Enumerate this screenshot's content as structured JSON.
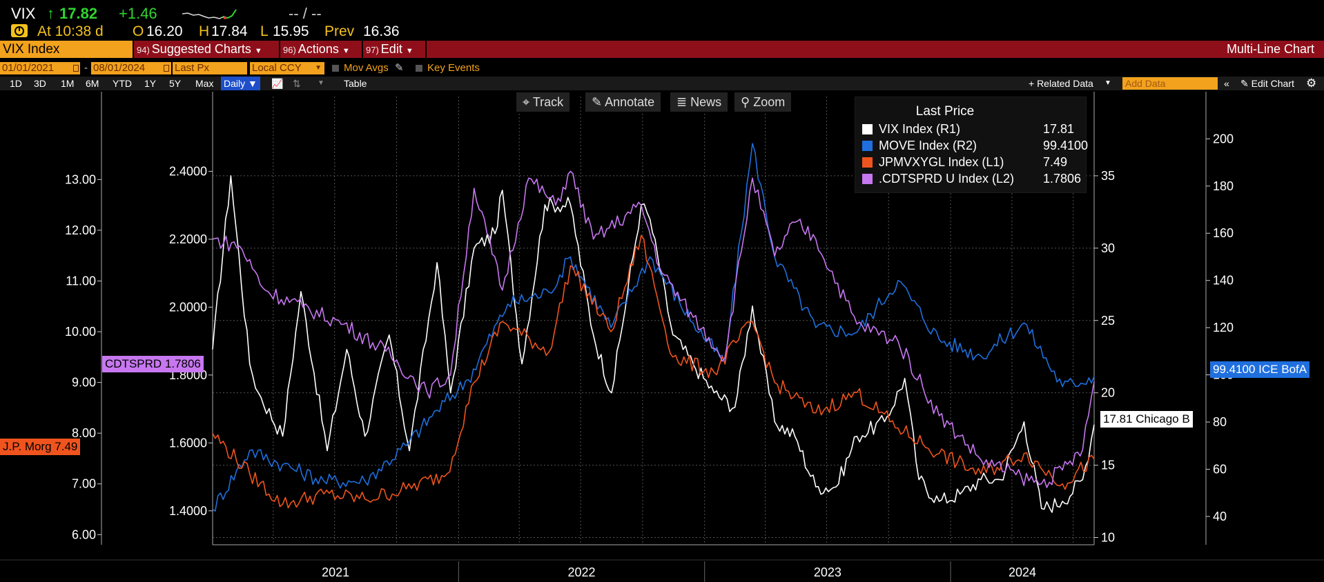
{
  "header": {
    "ticker": "VIX",
    "arrow": "↑",
    "last": "17.82",
    "change": "+1.46",
    "bid_ask": "-- / --",
    "time_label": "At 10:38 d",
    "open_label": "O",
    "open": "16.20",
    "high_label": "H",
    "high": "17.84",
    "low_label": "L",
    "low": "15.95",
    "prev_label": "Prev",
    "prev": "16.36"
  },
  "menu": {
    "security": "VIX Index",
    "suggested": {
      "num": "94)",
      "label": "Suggested Charts"
    },
    "actions": {
      "num": "96)",
      "label": "Actions"
    },
    "edit": {
      "num": "97)",
      "label": "Edit"
    },
    "title": "Multi-Line Chart"
  },
  "settings": {
    "start_date": "01/01/2021",
    "dash": "-",
    "end_date": "08/01/2024",
    "field": "Last Px",
    "currency": "Local CCY",
    "mov_avgs": "Mov Avgs",
    "key_events": "Key Events"
  },
  "periods": [
    "1D",
    "3D",
    "1M",
    "6M",
    "YTD",
    "1Y",
    "5Y",
    "Max"
  ],
  "frequency": "Daily ▼",
  "table_label": "Table",
  "right_tools": {
    "related": "+ Related Data",
    "add_data_placeholder": "Add Data",
    "edit_chart": "Edit Chart"
  },
  "chart_toolbar": {
    "track": "Track",
    "annotate": "Annotate",
    "news": "News",
    "zoom": "Zoom"
  },
  "legend": {
    "title": "Last Price",
    "items": [
      {
        "name": "VIX Index  (R1)",
        "value": "17.81",
        "color": "#ffffff"
      },
      {
        "name": "MOVE Index  (R2)",
        "value": "99.4100",
        "color": "#1f6fde"
      },
      {
        "name": "JPMVXYGL Index  (L1)",
        "value": "7.49",
        "color": "#f0541e"
      },
      {
        "name": ".CDTSPRD U Index  (L2)",
        "value": "1.7806",
        "color": "#c777f0"
      }
    ]
  },
  "tags": {
    "cdtsprd": "CDTSPRD 1.7806",
    "jpm": "J.P. Morg 7.49",
    "move": "99.4100 ICE BofA",
    "vix": "17.81 Chicago B"
  },
  "chart_data": {
    "type": "line",
    "x_range": [
      "2021-01-01",
      "2024-08-01"
    ],
    "x_tick_labels": [
      "2021",
      "2022",
      "2023",
      "2024"
    ],
    "axes": {
      "L1": {
        "ticks": [
          "6.00",
          "7.00",
          "8.00",
          "9.00",
          "10.00",
          "11.00",
          "12.00",
          "13.00"
        ],
        "range": [
          5.8,
          14.5
        ]
      },
      "L2": {
        "ticks": [
          "1.4000",
          "1.6000",
          "1.8000",
          "2.0000",
          "2.2000",
          "2.4000"
        ],
        "range": [
          1.3,
          2.6
        ]
      },
      "R1": {
        "ticks": [
          "10",
          "15",
          "20",
          "25",
          "30",
          "35"
        ],
        "range": [
          9.5,
          40.0
        ]
      },
      "R2": {
        "ticks": [
          "40",
          "60",
          "80",
          "100",
          "120",
          "140",
          "160",
          "180",
          "200"
        ],
        "range": [
          28,
          215
        ]
      }
    },
    "grid": true,
    "legend_position": "top-right",
    "series": [
      {
        "name": "VIX Index",
        "axis": "R1",
        "color": "#ffffff",
        "x": [
          "2021-01-01",
          "2021-01-28",
          "2021-02-25",
          "2021-03-10",
          "2021-04-15",
          "2021-05-12",
          "2021-06-20",
          "2021-07-19",
          "2021-08-15",
          "2021-09-20",
          "2021-10-20",
          "2021-11-30",
          "2021-12-20",
          "2022-01-24",
          "2022-02-24",
          "2022-03-07",
          "2022-04-05",
          "2022-05-09",
          "2022-06-16",
          "2022-07-20",
          "2022-08-16",
          "2022-09-29",
          "2022-10-12",
          "2022-11-15",
          "2022-12-15",
          "2023-01-15",
          "2023-02-15",
          "2023-03-13",
          "2023-04-15",
          "2023-05-15",
          "2023-06-15",
          "2023-07-15",
          "2023-08-15",
          "2023-09-25",
          "2023-10-25",
          "2023-11-15",
          "2023-12-15",
          "2024-01-15",
          "2024-02-15",
          "2024-03-15",
          "2024-04-19",
          "2024-05-15",
          "2024-06-15",
          "2024-07-15",
          "2024-08-01"
        ],
        "y": [
          23,
          35,
          22,
          20,
          17,
          27,
          16,
          23,
          17,
          24,
          16,
          29,
          20,
          30,
          31,
          34,
          22,
          33,
          33,
          24,
          20,
          33,
          32,
          24,
          22,
          20,
          19,
          26,
          18,
          17,
          13.5,
          13.5,
          17,
          18,
          21,
          14,
          12.5,
          13,
          14,
          14,
          18,
          12,
          12.5,
          14,
          17.8
        ]
      },
      {
        "name": "MOVE Index",
        "axis": "R2",
        "color": "#1f6fde",
        "x": [
          "2021-01-01",
          "2021-02-25",
          "2021-04-15",
          "2021-06-15",
          "2021-08-15",
          "2021-10-15",
          "2021-11-30",
          "2022-01-15",
          "2022-03-15",
          "2022-05-15",
          "2022-06-16",
          "2022-08-15",
          "2022-10-12",
          "2022-12-15",
          "2023-01-31",
          "2023-03-13",
          "2023-04-15",
          "2023-06-15",
          "2023-08-15",
          "2023-10-15",
          "2023-12-15",
          "2024-02-15",
          "2024-04-19",
          "2024-06-15",
          "2024-08-01"
        ],
        "y": [
          43,
          68,
          62,
          55,
          55,
          70,
          85,
          98,
          130,
          135,
          150,
          120,
          150,
          122,
          105,
          198,
          150,
          120,
          118,
          140,
          115,
          108,
          122,
          95,
          99.41
        ]
      },
      {
        "name": "JPMVXYGL Index",
        "axis": "L1",
        "color": "#f0541e",
        "x": [
          "2021-01-01",
          "2021-02-25",
          "2021-04-15",
          "2021-06-15",
          "2021-08-15",
          "2021-10-15",
          "2021-12-15",
          "2022-01-24",
          "2022-03-07",
          "2022-05-15",
          "2022-06-16",
          "2022-08-15",
          "2022-09-29",
          "2022-11-15",
          "2023-01-15",
          "2023-03-13",
          "2023-04-15",
          "2023-06-15",
          "2023-08-15",
          "2023-10-15",
          "2023-12-15",
          "2024-02-15",
          "2024-04-19",
          "2024-06-15",
          "2024-08-01"
        ],
        "y": [
          8.0,
          7.2,
          6.6,
          6.8,
          6.7,
          6.9,
          7.2,
          9.0,
          10.2,
          9.6,
          11.3,
          10.0,
          11.9,
          9.5,
          9.2,
          10.2,
          9.0,
          8.4,
          8.8,
          8.1,
          7.6,
          7.2,
          7.6,
          7.0,
          7.49
        ]
      },
      {
        "name": ".CDTSPRD U Index",
        "axis": "L2",
        "color": "#c777f0",
        "x": [
          "2021-01-01",
          "2021-02-10",
          "2021-03-20",
          "2021-05-15",
          "2021-07-15",
          "2021-09-15",
          "2021-11-15",
          "2021-12-20",
          "2022-01-24",
          "2022-03-07",
          "2022-04-15",
          "2022-05-25",
          "2022-06-16",
          "2022-07-20",
          "2022-09-29",
          "2022-10-30",
          "2022-12-15",
          "2023-01-31",
          "2023-03-13",
          "2023-04-15",
          "2023-05-15",
          "2023-06-15",
          "2023-08-15",
          "2023-10-15",
          "2023-12-15",
          "2024-01-15",
          "2024-02-15",
          "2024-04-15",
          "2024-05-15",
          "2024-06-15",
          "2024-07-15",
          "2024-08-01"
        ],
        "y": [
          2.2,
          2.18,
          2.05,
          2.0,
          1.95,
          1.87,
          1.75,
          1.8,
          2.35,
          2.05,
          2.38,
          2.3,
          2.4,
          2.2,
          2.3,
          2.1,
          1.97,
          1.85,
          2.38,
          2.15,
          2.25,
          2.2,
          1.95,
          1.9,
          1.68,
          1.62,
          1.55,
          1.5,
          1.48,
          1.52,
          1.58,
          1.78
        ]
      }
    ]
  }
}
